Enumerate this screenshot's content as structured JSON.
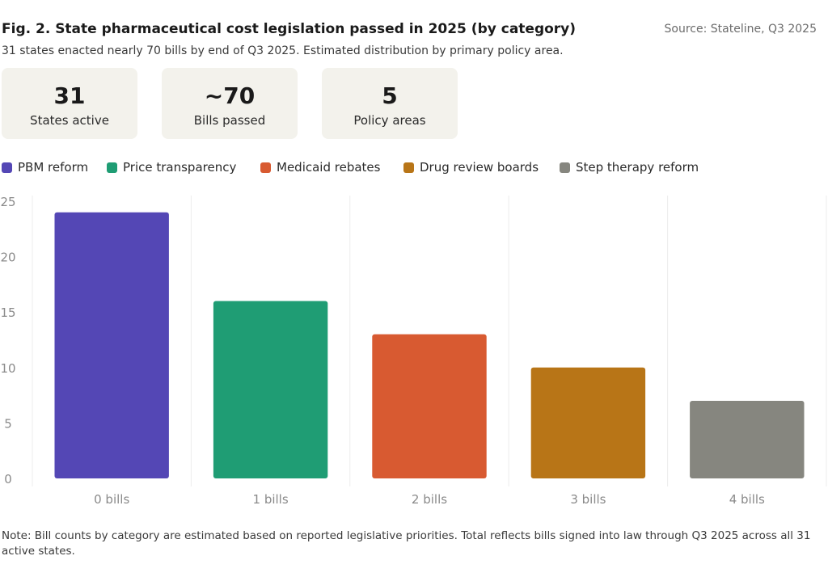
{
  "header": {
    "title": "Fig. 2. State pharmaceutical cost legislation passed in 2025 (by category)",
    "source": "Source: Stateline, Q3 2025",
    "subtitle": "31 states enacted nearly 70 bills by end of Q3 2025. Estimated distribution by primary policy area."
  },
  "stats": [
    {
      "value": "31",
      "label": "States active"
    },
    {
      "value": "~70",
      "label": "Bills passed"
    },
    {
      "value": "5",
      "label": "Policy areas"
    }
  ],
  "legend": [
    {
      "label": "PBM reform",
      "color": "#5447b5"
    },
    {
      "label": "Price transparency",
      "color": "#1f9d74"
    },
    {
      "label": "Medicaid rebates",
      "color": "#d85a31"
    },
    {
      "label": "Drug review boards",
      "color": "#b87517"
    },
    {
      "label": "Step therapy reform",
      "color": "#86867f"
    }
  ],
  "chart_data": {
    "type": "bar",
    "categories": [
      "0 bills",
      "1 bills",
      "2 bills",
      "3 bills",
      "4 bills"
    ],
    "values": [
      24,
      16,
      13,
      10,
      7
    ],
    "colors": [
      "#5447b5",
      "#1f9d74",
      "#d85a31",
      "#b87517",
      "#86867f"
    ],
    "yticks": [
      0,
      5,
      10,
      15,
      20,
      25
    ],
    "ylim": [
      0,
      25
    ],
    "grid": true
  },
  "note": "Note: Bill counts by category are estimated based on reported legislative priorities. Total reflects bills signed into law through Q3 2025 across all 31 active states."
}
